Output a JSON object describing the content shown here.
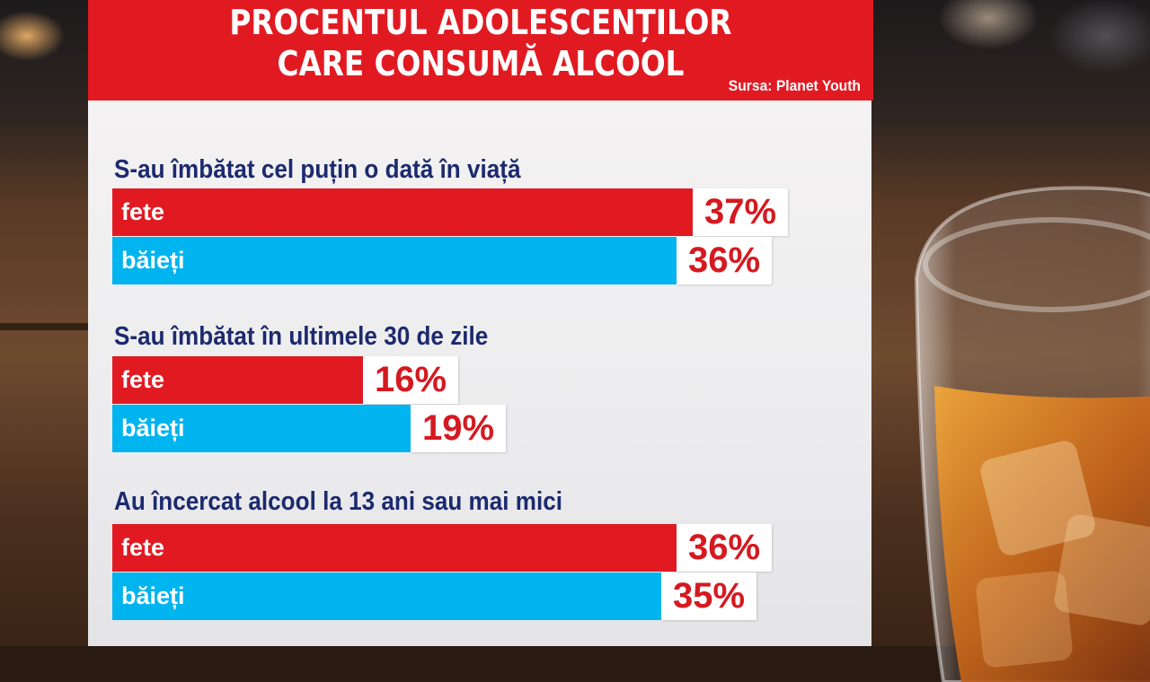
{
  "header": {
    "title_line1": "PROCENTUL ADOLESCENȚILOR",
    "title_line2": "CARE CONSUMĂ ALCOOL",
    "source": "Sursa: Planet Youth"
  },
  "colors": {
    "header_red": "#e11a22",
    "girls_bar": "#e11a22",
    "boys_bar": "#00b4ef",
    "title_blue": "#1c2a6e",
    "value_red": "#d51920"
  },
  "chart_data": {
    "type": "bar",
    "orientation": "horizontal",
    "title": "PROCENTUL ADOLESCENȚILOR CARE CONSUMĂ ALCOOL",
    "source": "Sursa: Planet Youth",
    "unit": "%",
    "xlim": [
      0,
      100
    ],
    "grid": false,
    "groups": [
      {
        "label": "S-au îmbătat cel puțin o dată în viață",
        "bars": [
          {
            "label": "fete",
            "value": 37,
            "value_label": "37%",
            "color": "#e11a22"
          },
          {
            "label": "băieți",
            "value": 36,
            "value_label": "36%",
            "color": "#00b4ef"
          }
        ]
      },
      {
        "label": "S-au îmbătat în ultimele 30 de zile",
        "bars": [
          {
            "label": "fete",
            "value": 16,
            "value_label": "16%",
            "color": "#e11a22"
          },
          {
            "label": "băieți",
            "value": 19,
            "value_label": "19%",
            "color": "#00b4ef"
          }
        ]
      },
      {
        "label": "Au încercat alcool la 13 ani sau mai mici",
        "bars": [
          {
            "label": "fete",
            "value": 36,
            "value_label": "36%",
            "color": "#e11a22"
          },
          {
            "label": "băieți",
            "value": 35,
            "value_label": "35%",
            "color": "#00b4ef"
          }
        ]
      }
    ]
  }
}
